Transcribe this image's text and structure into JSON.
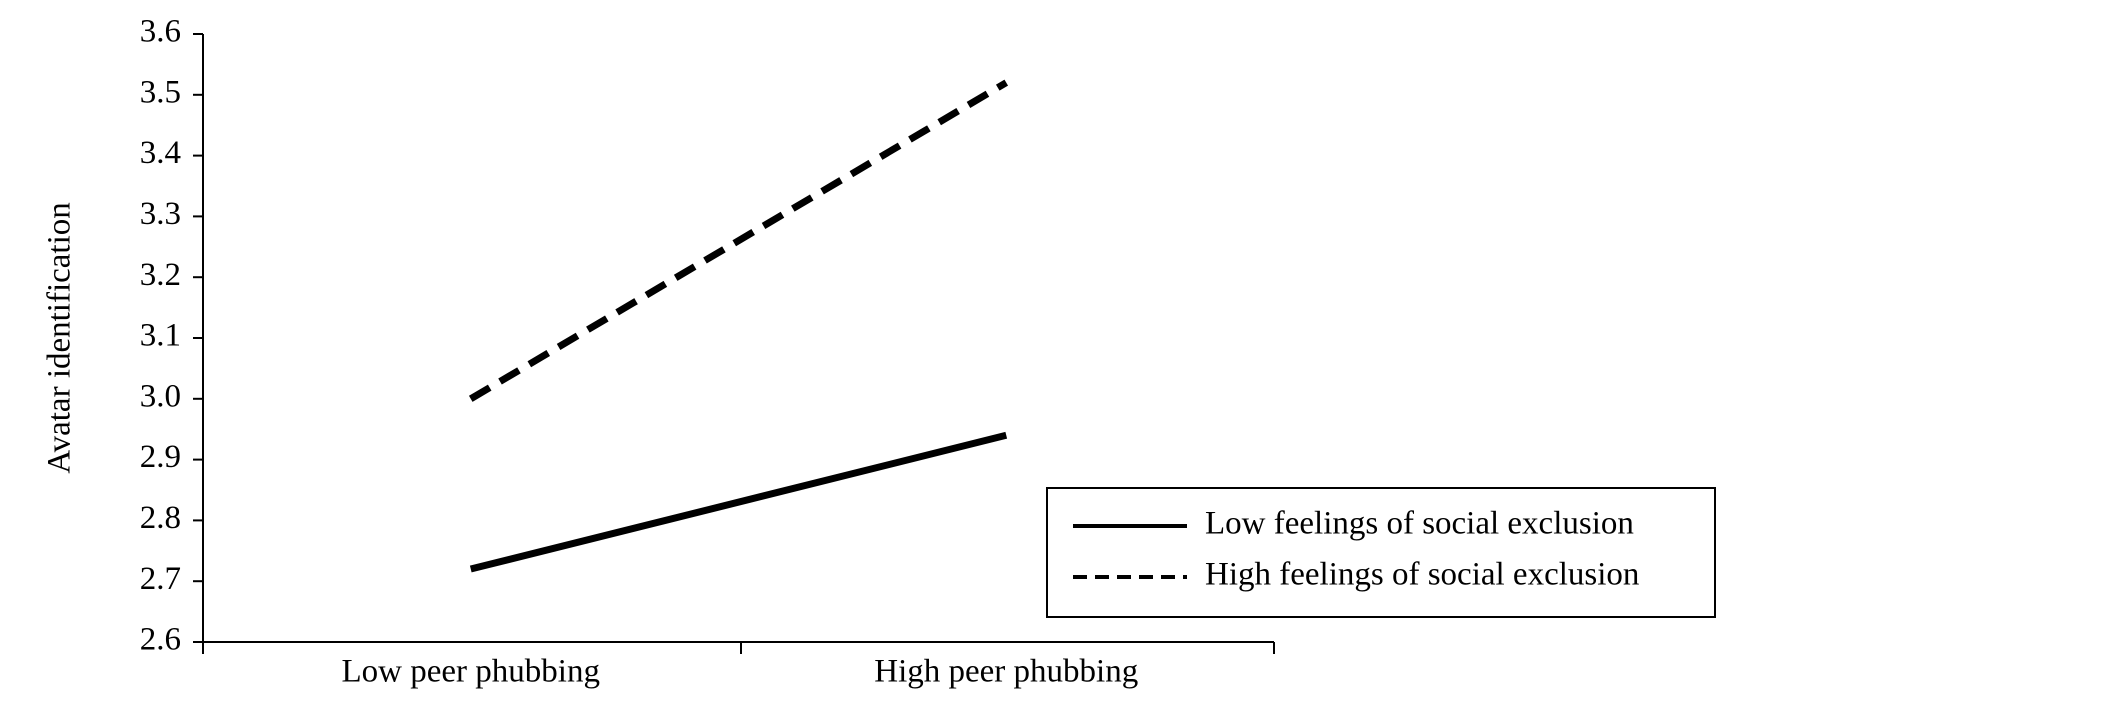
{
  "chart_data": {
    "type": "line",
    "y_label": "Avatar identification",
    "categories": [
      "Low peer phubbing",
      "High peer phubbing"
    ],
    "series": [
      {
        "name": "Low feelings of social exclusion",
        "color": "#000000",
        "linestyle": "solid",
        "values": [
          2.72,
          2.94
        ]
      },
      {
        "name": "High feelings of social exclusion",
        "color": "#000000",
        "linestyle": "dashed",
        "values": [
          3.0,
          3.52
        ]
      }
    ],
    "ylim": [
      2.6,
      3.6
    ],
    "yticks": [
      {
        "value": 2.6,
        "label": "2.6"
      },
      {
        "value": 2.7,
        "label": "2.7"
      },
      {
        "value": 2.8,
        "label": "2.8"
      },
      {
        "value": 2.9,
        "label": "2.9"
      },
      {
        "value": 3.0,
        "label": "3.0"
      },
      {
        "value": 3.1,
        "label": "3.1"
      },
      {
        "value": 3.2,
        "label": "3.2"
      },
      {
        "value": 3.3,
        "label": "3.3"
      },
      {
        "value": 3.4,
        "label": "3.4"
      },
      {
        "value": 3.5,
        "label": "3.5"
      },
      {
        "value": 3.6,
        "label": "3.6"
      }
    ],
    "grid": false,
    "legend": "lower right"
  }
}
